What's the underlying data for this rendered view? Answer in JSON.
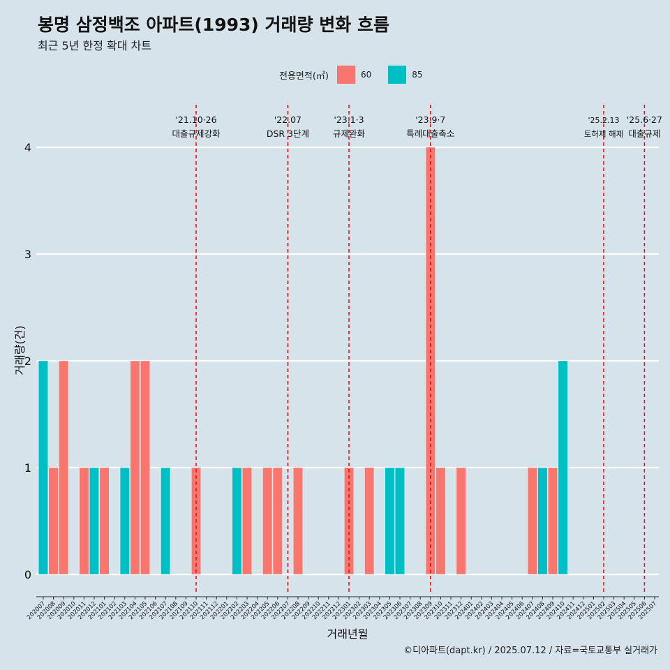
{
  "title": "봉명 삼정백조 아파트(1993) 거래량 변화 흐름",
  "subtitle": "최근 5년 한정 확대 차트",
  "caption": "©디아파트(dapt.kr) / 2025.07.12 / 자료=국토교통부 실거래가",
  "colors": {
    "background": "#d6e3ea",
    "series_60": "#f8766d",
    "series_85": "#00bfc4",
    "event_line": "#e8161a"
  },
  "chart_data": {
    "type": "bar",
    "title": "봉명 삼정백조 아파트(1993) 거래량 변화 흐름",
    "subtitle": "최근 5년 한정 확대 차트",
    "xlabel": "거래년월",
    "ylabel": "거래량(건)",
    "ylim": [
      0,
      4
    ],
    "yticks": [
      0,
      1,
      2,
      3,
      4
    ],
    "grid": true,
    "legend": {
      "title": "전용면적(㎡)",
      "position": "top",
      "entries": [
        "60",
        "85"
      ]
    },
    "categories": [
      "202007",
      "202008",
      "202009",
      "202010",
      "202011",
      "202012",
      "202101",
      "202102",
      "202103",
      "202104",
      "202105",
      "202106",
      "202107",
      "202108",
      "202109",
      "202110",
      "202111",
      "202112",
      "202201",
      "202202",
      "202203",
      "202204",
      "202205",
      "202206",
      "202207",
      "202208",
      "202209",
      "202210",
      "202211",
      "202212",
      "202301",
      "202302",
      "202303",
      "202304",
      "202305",
      "202306",
      "202307",
      "202308",
      "202309",
      "202310",
      "202311",
      "202312",
      "202401",
      "202402",
      "202403",
      "202404",
      "202405",
      "202406",
      "202407",
      "202408",
      "202409",
      "202410",
      "202411",
      "202412",
      "202501",
      "202502",
      "202503",
      "202504",
      "202505",
      "202506",
      "202507"
    ],
    "series": [
      {
        "name": "60",
        "values": [
          0,
          1,
          2,
          0,
          1,
          0,
          1,
          0,
          0,
          2,
          2,
          0,
          0,
          0,
          0,
          1,
          0,
          0,
          0,
          0,
          1,
          0,
          1,
          1,
          0,
          1,
          0,
          0,
          0,
          0,
          1,
          0,
          1,
          0,
          0,
          0,
          0,
          0,
          4,
          1,
          0,
          1,
          0,
          0,
          0,
          0,
          0,
          0,
          1,
          0,
          1,
          0,
          0,
          0,
          0,
          0,
          0,
          0,
          0,
          0,
          0
        ]
      },
      {
        "name": "85",
        "values": [
          2,
          0,
          0,
          0,
          0,
          1,
          0,
          0,
          1,
          0,
          0,
          0,
          1,
          0,
          0,
          0,
          0,
          0,
          0,
          1,
          0,
          0,
          0,
          0,
          0,
          0,
          0,
          0,
          0,
          0,
          0,
          0,
          0,
          0,
          1,
          1,
          0,
          0,
          0,
          0,
          0,
          0,
          0,
          0,
          0,
          0,
          0,
          0,
          0,
          1,
          0,
          2,
          0,
          0,
          0,
          0,
          0,
          0,
          0,
          0,
          0
        ]
      }
    ],
    "annotations": [
      {
        "date": "'21.10·26",
        "label": "대출규제강화",
        "x": "202110"
      },
      {
        "date": "'22.07",
        "label": "DSR 3단계",
        "x": "202207"
      },
      {
        "date": "'23.1·3",
        "label": "규제완화",
        "x": "202301"
      },
      {
        "date": "'23.9·7",
        "label": "특례대출축소",
        "x": "202309"
      },
      {
        "date": "'25.2.13",
        "label": "토허제 해제",
        "x": "202502"
      },
      {
        "date": "'25.6·27",
        "label": "대출규제",
        "x": "202506"
      }
    ]
  }
}
